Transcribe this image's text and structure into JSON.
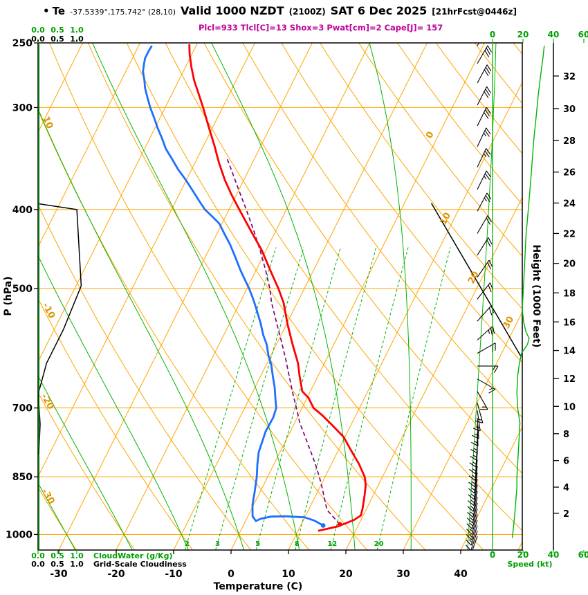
{
  "title": {
    "bullet": "•",
    "series_label": "Te",
    "location": "-37.5339°,175.742° (28,10)",
    "valid_main": "Valid 1000 NZDT",
    "valid_zulu": "(2100Z)",
    "valid_date": "SAT 6 Dec 2025",
    "forecast_ref": "[21hrFcst@0446z]",
    "indices_line": "Plcl=933 Tlcl[C]=13 Shox=3 Pwat[cm]=2 Cape[J]= 157"
  },
  "axis_labels": {
    "pressure": "P (hPa)",
    "temperature": "Temperature (C)",
    "height": "Height (1000 Feet)",
    "speed": "Speed (kt)",
    "cloudwater": "CloudWater (g/Kg)",
    "cloudiness": "Grid-Scale Cloudiness"
  },
  "scales": {
    "pressure_ticks": [
      250,
      300,
      400,
      500,
      700,
      850,
      1000
    ],
    "temp_ticks": [
      -30,
      -20,
      -10,
      0,
      10,
      20,
      30,
      40
    ],
    "height_ticks": [
      2,
      4,
      6,
      8,
      10,
      12,
      14,
      16,
      18,
      20,
      22,
      24,
      26,
      28,
      30,
      32
    ],
    "speed_ticks_top": [
      0,
      20,
      40,
      60
    ],
    "speed_ticks_bottom": [
      0,
      20,
      40,
      60
    ],
    "cloud_ticks": [
      "0.0",
      "0.5",
      "1.0"
    ],
    "isotherm_labels": [
      {
        "t": 0,
        "y": 197
      },
      {
        "t": 10,
        "y": 318
      },
      {
        "t": 20,
        "y": 403
      },
      {
        "t": 30,
        "y": 468
      }
    ],
    "dry_adiabat_labels": [
      10,
      -10,
      -20,
      -30
    ],
    "mixing_ratio_labels": [
      2,
      3,
      5,
      8,
      12,
      20
    ]
  },
  "grid": {
    "isotherms": {
      "min": -120,
      "max": 50,
      "step": 10
    },
    "dry_adiabats": {
      "min": -60,
      "max": 150,
      "step": 10
    },
    "moist_adiabats": [
      -30,
      -20,
      -10,
      0,
      10,
      20,
      30,
      40
    ],
    "mixing_ratios": [
      2,
      3,
      5,
      8,
      12,
      20
    ],
    "pressure_lines": [
      300,
      400,
      500,
      700,
      850,
      1000
    ]
  },
  "colors": {
    "orange": "#ffa500",
    "orange_label": "#de9400",
    "green": "#00b400",
    "green_text": "#00a000",
    "red": "#ff0000",
    "blue": "#1f6fff",
    "purple": "#800080",
    "black": "#000000",
    "magenta": "#c0009c"
  },
  "chart_data": {
    "type": "line",
    "title": "Skew-T log-P forecast sounding, Te, -37.5339°,175.742° (28,10), valid 1000 NZDT (2100Z) SAT 6 Dec 2025, 21hr forecast from 0446z",
    "x_axis": {
      "label": "Temperature (C)",
      "range": [
        -33.6,
        50.7
      ],
      "skew": "45deg"
    },
    "y_axis": {
      "label": "P (hPa)",
      "range": [
        1045,
        250
      ],
      "scale": "log"
    },
    "indices": {
      "Plcl": 933,
      "Tlcl_C": 13,
      "Shox": 3,
      "Pwat_cm": 2,
      "Cape_J": 157
    },
    "series": [
      {
        "name": "temperature",
        "color": "#ff0000",
        "style": "solid",
        "points": [
          [
            990,
            13.5
          ],
          [
            978,
            16.5
          ],
          [
            960,
            18.8
          ],
          [
            948,
            19.6
          ],
          [
            930,
            19.3
          ],
          [
            900,
            18.6
          ],
          [
            870,
            17.8
          ],
          [
            850,
            16.9
          ],
          [
            820,
            14.8
          ],
          [
            790,
            12.3
          ],
          [
            760,
            9.8
          ],
          [
            736,
            6.9
          ],
          [
            715,
            4.2
          ],
          [
            700,
            2.0
          ],
          [
            680,
            0.2
          ],
          [
            668,
            -1.4
          ],
          [
            640,
            -3.2
          ],
          [
            617,
            -4.6
          ],
          [
            585,
            -7.2
          ],
          [
            553,
            -9.8
          ],
          [
            520,
            -12.4
          ],
          [
            500,
            -14.5
          ],
          [
            475,
            -17.5
          ],
          [
            449,
            -20.7
          ],
          [
            425,
            -24.3
          ],
          [
            400,
            -28.2
          ],
          [
            384,
            -30.8
          ],
          [
            368,
            -33.3
          ],
          [
            350,
            -35.9
          ],
          [
            334,
            -38.1
          ],
          [
            317,
            -40.7
          ],
          [
            300,
            -43.4
          ],
          [
            289,
            -45.3
          ],
          [
            278,
            -47.3
          ],
          [
            268,
            -48.9
          ],
          [
            258,
            -50.4
          ],
          [
            251,
            -51.3
          ]
        ]
      },
      {
        "name": "dewpoint",
        "color": "#1f6fff",
        "style": "solid",
        "points": [
          [
            975,
            13.9
          ],
          [
            962,
            12.0
          ],
          [
            953,
            10.0
          ],
          [
            950,
            6.5
          ],
          [
            951,
            4.0
          ],
          [
            957,
            2.4
          ],
          [
            963,
            1.8
          ],
          [
            950,
            0.8
          ],
          [
            920,
            -0.2
          ],
          [
            885,
            -1.0
          ],
          [
            850,
            -1.9
          ],
          [
            820,
            -2.9
          ],
          [
            793,
            -3.7
          ],
          [
            748,
            -4.3
          ],
          [
            719,
            -4.2
          ],
          [
            700,
            -4.5
          ],
          [
            679,
            -5.6
          ],
          [
            660,
            -6.6
          ],
          [
            641,
            -7.8
          ],
          [
            620,
            -9.1
          ],
          [
            604,
            -10.4
          ],
          [
            585,
            -11.7
          ],
          [
            570,
            -13.1
          ],
          [
            550,
            -14.7
          ],
          [
            538,
            -15.8
          ],
          [
            525,
            -17.0
          ],
          [
            513,
            -18.2
          ],
          [
            500,
            -19.6
          ],
          [
            487,
            -21.2
          ],
          [
            474,
            -22.8
          ],
          [
            458,
            -24.7
          ],
          [
            442,
            -26.7
          ],
          [
            429,
            -28.6
          ],
          [
            416,
            -30.5
          ],
          [
            408,
            -32.3
          ],
          [
            400,
            -34.2
          ],
          [
            389,
            -36.2
          ],
          [
            378,
            -38.2
          ],
          [
            367,
            -40.3
          ],
          [
            357,
            -42.4
          ],
          [
            347,
            -44.3
          ],
          [
            337,
            -46.3
          ],
          [
            327,
            -47.9
          ],
          [
            318,
            -49.5
          ],
          [
            309,
            -51.0
          ],
          [
            300,
            -52.6
          ],
          [
            292,
            -53.9
          ],
          [
            284,
            -55.2
          ],
          [
            277,
            -56.1
          ],
          [
            271,
            -57.0
          ],
          [
            265,
            -57.5
          ],
          [
            261,
            -57.8
          ],
          [
            256,
            -57.8
          ],
          [
            252,
            -57.7
          ]
        ]
      },
      {
        "name": "parcel",
        "color": "#800080",
        "style": "dashed",
        "points": [
          [
            972,
            16.7
          ],
          [
            955,
            15.2
          ],
          [
            933,
            13.2
          ],
          [
            900,
            11.6
          ],
          [
            870,
            10.1
          ],
          [
            850,
            9.0
          ],
          [
            820,
            7.2
          ],
          [
            790,
            5.2
          ],
          [
            760,
            3.1
          ],
          [
            730,
            0.9
          ],
          [
            700,
            -1.0
          ],
          [
            670,
            -3.0
          ],
          [
            640,
            -5.0
          ],
          [
            610,
            -7.1
          ],
          [
            580,
            -9.4
          ],
          [
            550,
            -11.9
          ],
          [
            520,
            -14.5
          ],
          [
            500,
            -16.0
          ],
          [
            475,
            -18.3
          ],
          [
            450,
            -20.9
          ],
          [
            425,
            -23.8
          ],
          [
            400,
            -27.0
          ],
          [
            380,
            -29.8
          ],
          [
            360,
            -32.7
          ],
          [
            345,
            -35.0
          ]
        ]
      },
      {
        "name": "te_envelope",
        "color": "#000000",
        "style": "solid",
        "segments": [
          [
            [
              393,
              -64.3
            ],
            [
              400,
              -56.5
            ],
            [
              496,
              -49.1
            ],
            [
              561,
              -48.4
            ],
            [
              617,
              -48.4
            ],
            [
              672,
              -47.2
            ],
            [
              733,
              -44.2
            ],
            [
              798,
              -41.8
            ]
          ],
          [
            [
              393,
              4.7
            ],
            [
              605,
              33.6
            ]
          ]
        ]
      }
    ],
    "surface_markers": [
      {
        "name": "temperature",
        "p": 972,
        "t": 16.7,
        "color": "#ff0000"
      },
      {
        "name": "dewpoint",
        "p": 975,
        "t": 13.9,
        "color": "#1f6fff"
      }
    ],
    "wind_barbs": [
      {
        "p": 252,
        "kt": 35,
        "dir": 30
      },
      {
        "p": 265,
        "kt": 32,
        "dir": 30
      },
      {
        "p": 280,
        "kt": 30,
        "dir": 28
      },
      {
        "p": 298,
        "kt": 30,
        "dir": 27
      },
      {
        "p": 316,
        "kt": 28,
        "dir": 26
      },
      {
        "p": 335,
        "kt": 27,
        "dir": 25
      },
      {
        "p": 355,
        "kt": 25,
        "dir": 25
      },
      {
        "p": 378,
        "kt": 24,
        "dir": 26
      },
      {
        "p": 402,
        "kt": 23,
        "dir": 28
      },
      {
        "p": 428,
        "kt": 22,
        "dir": 30
      },
      {
        "p": 455,
        "kt": 21,
        "dir": 32
      },
      {
        "p": 484,
        "kt": 20,
        "dir": 35
      },
      {
        "p": 515,
        "kt": 20,
        "dir": 38
      },
      {
        "p": 548,
        "kt": 22,
        "dir": 42
      },
      {
        "p": 578,
        "kt": 23,
        "dir": 48
      },
      {
        "p": 600,
        "kt": 19,
        "dir": 60
      },
      {
        "p": 622,
        "kt": 17,
        "dir": 90
      },
      {
        "p": 645,
        "kt": 16,
        "dir": 120
      },
      {
        "p": 668,
        "kt": 15,
        "dir": 150
      },
      {
        "p": 690,
        "kt": 14,
        "dir": 165
      },
      {
        "p": 705,
        "kt": 14,
        "dir": 172
      },
      {
        "p": 720,
        "kt": 14,
        "dir": 176
      },
      {
        "p": 735,
        "kt": 14,
        "dir": 178
      },
      {
        "p": 750,
        "kt": 15,
        "dir": 180
      },
      {
        "p": 765,
        "kt": 15,
        "dir": 182
      },
      {
        "p": 780,
        "kt": 15,
        "dir": 184
      },
      {
        "p": 795,
        "kt": 15,
        "dir": 185
      },
      {
        "p": 810,
        "kt": 15,
        "dir": 186
      },
      {
        "p": 825,
        "kt": 15,
        "dir": 187
      },
      {
        "p": 840,
        "kt": 15,
        "dir": 188
      },
      {
        "p": 855,
        "kt": 15,
        "dir": 189
      },
      {
        "p": 870,
        "kt": 15,
        "dir": 190
      },
      {
        "p": 885,
        "kt": 14,
        "dir": 191
      },
      {
        "p": 900,
        "kt": 14,
        "dir": 192
      },
      {
        "p": 915,
        "kt": 14,
        "dir": 193
      },
      {
        "p": 930,
        "kt": 14,
        "dir": 194
      },
      {
        "p": 945,
        "kt": 13,
        "dir": 195
      },
      {
        "p": 960,
        "kt": 13,
        "dir": 196
      },
      {
        "p": 975,
        "kt": 13,
        "dir": 197
      },
      {
        "p": 990,
        "kt": 12,
        "dir": 198
      },
      {
        "p": 1005,
        "kt": 12,
        "dir": 199
      }
    ],
    "speed_profile": {
      "name": "Speed (kt)",
      "color": "#00b400",
      "points": [
        [
          1010,
          13
        ],
        [
          990,
          13.5
        ],
        [
          970,
          14
        ],
        [
          950,
          14.5
        ],
        [
          925,
          15
        ],
        [
          900,
          15.5
        ],
        [
          875,
          16
        ],
        [
          850,
          16
        ],
        [
          820,
          16.5
        ],
        [
          790,
          17
        ],
        [
          760,
          17.5
        ],
        [
          730,
          18
        ],
        [
          700,
          16.5
        ],
        [
          670,
          16
        ],
        [
          640,
          16.5
        ],
        [
          620,
          17.5
        ],
        [
          600,
          19
        ],
        [
          585,
          23
        ],
        [
          575,
          24
        ],
        [
          565,
          22
        ],
        [
          550,
          20.5
        ],
        [
          530,
          19.5
        ],
        [
          510,
          20
        ],
        [
          490,
          20.5
        ],
        [
          470,
          21
        ],
        [
          450,
          21.5
        ],
        [
          430,
          22
        ],
        [
          410,
          23
        ],
        [
          390,
          24
        ],
        [
          370,
          25
        ],
        [
          350,
          26
        ],
        [
          330,
          27
        ],
        [
          310,
          28.5
        ],
        [
          290,
          30
        ],
        [
          275,
          31.5
        ],
        [
          262,
          33
        ],
        [
          252,
          34
        ]
      ]
    },
    "cloudwater_profile": {
      "value": 0,
      "note": "flat at 0 g/Kg (line on left edge)"
    },
    "grid_scale_cloudiness_profile": {
      "value": 0,
      "note": "flat at 0 (line on left edge)"
    }
  }
}
